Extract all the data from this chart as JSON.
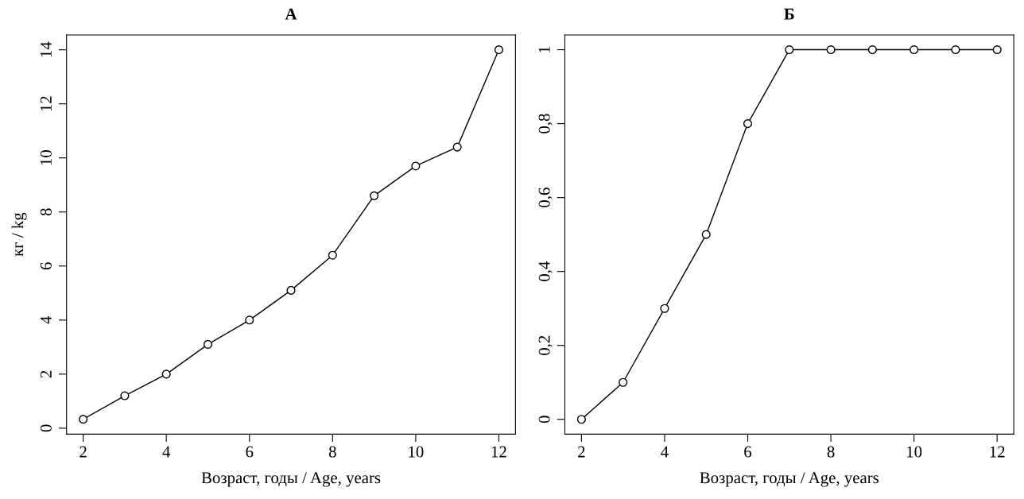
{
  "chart_data": [
    {
      "type": "line",
      "title": "А",
      "xlabel": "Возраст, годы / Age, years",
      "ylabel": "кг / kg",
      "x": [
        2,
        3,
        4,
        5,
        6,
        7,
        8,
        9,
        10,
        11,
        12
      ],
      "series": [
        {
          "color": "#000000",
          "values": [
            0.33,
            1.2,
            2.0,
            3.1,
            4.0,
            5.1,
            6.4,
            8.6,
            9.7,
            10.4,
            14.0
          ]
        }
      ],
      "xlim": [
        1.6,
        12.4
      ],
      "xticks": [
        2,
        4,
        6,
        8,
        10,
        12
      ],
      "ylim": [
        -0.22,
        14.55
      ],
      "yticks": [
        0,
        2,
        4,
        6,
        8,
        10,
        12,
        14
      ],
      "marker": "circle",
      "line_style": "solid"
    },
    {
      "type": "line",
      "title": "Б",
      "xlabel": "Возраст, годы / Age, years",
      "x": [
        2,
        3,
        4,
        5,
        6,
        7,
        8,
        9,
        10,
        11,
        12
      ],
      "series": [
        {
          "color": "#000000",
          "values": [
            0,
            0.1,
            0.3,
            0.5,
            0.8,
            1,
            1,
            1,
            1,
            1,
            1
          ]
        }
      ],
      "xlim": [
        1.6,
        12.4
      ],
      "xticks": [
        2,
        4,
        6,
        8,
        10,
        12
      ],
      "ylim": [
        -0.04,
        1.04
      ],
      "yticks": [
        0,
        {
          "value": 0.2,
          "label": "0,2"
        },
        {
          "value": 0.4,
          "label": "0,4"
        },
        {
          "value": 0.6,
          "label": "0,6"
        },
        {
          "value": 0.8,
          "label": "0,8"
        },
        1
      ],
      "marker": "circle",
      "line_style": "solid"
    }
  ]
}
